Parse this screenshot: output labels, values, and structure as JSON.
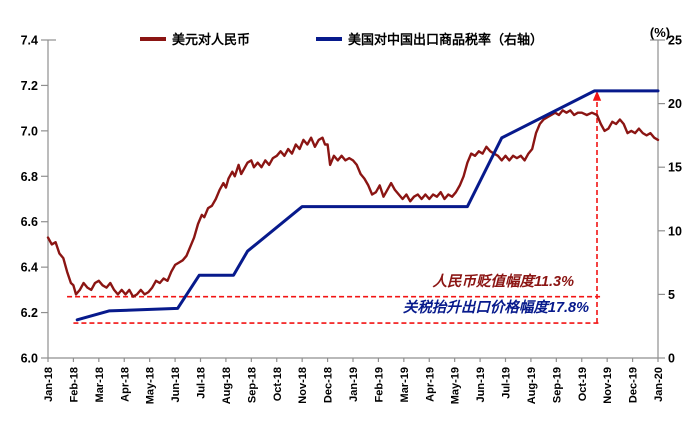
{
  "legend": {
    "series": [
      {
        "label": "美元对人民币",
        "color": "#8b1513"
      },
      {
        "label": "美国对中国出口商品税率（右轴）",
        "color": "#071a8c"
      }
    ]
  },
  "chart_data": {
    "type": "line",
    "title": "",
    "x_axis": {
      "labels": [
        "Jan-18",
        "Feb-18",
        "Mar-18",
        "Apr-18",
        "May-18",
        "Jun-18",
        "Jul-18",
        "Aug-18",
        "Sep-18",
        "Oct-18",
        "Nov-18",
        "Dec-18",
        "Jan-19",
        "Feb-19",
        "Mar-19",
        "Apr-19",
        "May-19",
        "Jun-19",
        "Jul-19",
        "Aug-19",
        "Sep-19",
        "Oct-19",
        "Nov-19",
        "Dec-19",
        "Jan-20"
      ]
    },
    "y_left": {
      "min": 6.0,
      "max": 7.4,
      "tick_labels": [
        "7.4",
        "7.2",
        "7.0",
        "6.8",
        "6.6",
        "6.4",
        "6.2",
        "6.0"
      ]
    },
    "y_right": {
      "min": 0,
      "max": 25,
      "tick_labels": [
        "25",
        "20",
        "15",
        "10",
        "5",
        "0"
      ],
      "unit_label": "(%)"
    },
    "series": [
      {
        "name": "美元对人民币",
        "axis": "left",
        "color": "#8b1513",
        "stroke_width": 2.4,
        "points": [
          [
            0.0,
            6.53
          ],
          [
            0.15,
            6.5
          ],
          [
            0.3,
            6.51
          ],
          [
            0.45,
            6.46
          ],
          [
            0.6,
            6.44
          ],
          [
            0.75,
            6.38
          ],
          [
            0.9,
            6.33
          ],
          [
            1.0,
            6.32
          ],
          [
            1.1,
            6.28
          ],
          [
            1.25,
            6.3
          ],
          [
            1.4,
            6.33
          ],
          [
            1.55,
            6.31
          ],
          [
            1.7,
            6.3
          ],
          [
            1.85,
            6.33
          ],
          [
            2.0,
            6.34
          ],
          [
            2.15,
            6.32
          ],
          [
            2.3,
            6.31
          ],
          [
            2.45,
            6.33
          ],
          [
            2.6,
            6.3
          ],
          [
            2.75,
            6.28
          ],
          [
            2.9,
            6.3
          ],
          [
            3.05,
            6.28
          ],
          [
            3.2,
            6.3
          ],
          [
            3.35,
            6.27
          ],
          [
            3.5,
            6.28
          ],
          [
            3.65,
            6.3
          ],
          [
            3.8,
            6.28
          ],
          [
            3.95,
            6.29
          ],
          [
            4.1,
            6.31
          ],
          [
            4.25,
            6.34
          ],
          [
            4.4,
            6.33
          ],
          [
            4.55,
            6.35
          ],
          [
            4.7,
            6.34
          ],
          [
            4.85,
            6.38
          ],
          [
            5.0,
            6.41
          ],
          [
            5.15,
            6.42
          ],
          [
            5.3,
            6.43
          ],
          [
            5.45,
            6.45
          ],
          [
            5.6,
            6.49
          ],
          [
            5.75,
            6.53
          ],
          [
            5.9,
            6.59
          ],
          [
            6.05,
            6.63
          ],
          [
            6.15,
            6.62
          ],
          [
            6.3,
            6.66
          ],
          [
            6.45,
            6.67
          ],
          [
            6.6,
            6.7
          ],
          [
            6.75,
            6.74
          ],
          [
            6.9,
            6.77
          ],
          [
            7.0,
            6.75
          ],
          [
            7.1,
            6.79
          ],
          [
            7.25,
            6.82
          ],
          [
            7.35,
            6.8
          ],
          [
            7.5,
            6.85
          ],
          [
            7.6,
            6.81
          ],
          [
            7.7,
            6.83
          ],
          [
            7.85,
            6.86
          ],
          [
            8.0,
            6.87
          ],
          [
            8.1,
            6.84
          ],
          [
            8.25,
            6.86
          ],
          [
            8.4,
            6.84
          ],
          [
            8.55,
            6.87
          ],
          [
            8.7,
            6.85
          ],
          [
            8.85,
            6.88
          ],
          [
            9.0,
            6.89
          ],
          [
            9.15,
            6.91
          ],
          [
            9.3,
            6.89
          ],
          [
            9.45,
            6.92
          ],
          [
            9.6,
            6.9
          ],
          [
            9.75,
            6.94
          ],
          [
            9.9,
            6.92
          ],
          [
            10.05,
            6.96
          ],
          [
            10.2,
            6.94
          ],
          [
            10.35,
            6.97
          ],
          [
            10.5,
            6.93
          ],
          [
            10.65,
            6.96
          ],
          [
            10.8,
            6.97
          ],
          [
            10.9,
            6.94
          ],
          [
            11.0,
            6.94
          ],
          [
            11.1,
            6.85
          ],
          [
            11.25,
            6.89
          ],
          [
            11.4,
            6.87
          ],
          [
            11.55,
            6.89
          ],
          [
            11.7,
            6.87
          ],
          [
            11.85,
            6.88
          ],
          [
            12.0,
            6.87
          ],
          [
            12.15,
            6.85
          ],
          [
            12.3,
            6.81
          ],
          [
            12.45,
            6.79
          ],
          [
            12.6,
            6.76
          ],
          [
            12.75,
            6.72
          ],
          [
            12.9,
            6.73
          ],
          [
            13.05,
            6.76
          ],
          [
            13.2,
            6.71
          ],
          [
            13.35,
            6.74
          ],
          [
            13.5,
            6.77
          ],
          [
            13.65,
            6.74
          ],
          [
            13.8,
            6.72
          ],
          [
            13.95,
            6.7
          ],
          [
            14.1,
            6.72
          ],
          [
            14.25,
            6.69
          ],
          [
            14.4,
            6.71
          ],
          [
            14.55,
            6.72
          ],
          [
            14.7,
            6.7
          ],
          [
            14.85,
            6.72
          ],
          [
            15.0,
            6.7
          ],
          [
            15.15,
            6.72
          ],
          [
            15.3,
            6.71
          ],
          [
            15.45,
            6.73
          ],
          [
            15.6,
            6.7
          ],
          [
            15.75,
            6.72
          ],
          [
            15.9,
            6.71
          ],
          [
            16.05,
            6.73
          ],
          [
            16.2,
            6.76
          ],
          [
            16.35,
            6.8
          ],
          [
            16.5,
            6.86
          ],
          [
            16.65,
            6.9
          ],
          [
            16.8,
            6.89
          ],
          [
            16.95,
            6.91
          ],
          [
            17.1,
            6.9
          ],
          [
            17.25,
            6.93
          ],
          [
            17.4,
            6.91
          ],
          [
            17.55,
            6.9
          ],
          [
            17.7,
            6.89
          ],
          [
            17.85,
            6.87
          ],
          [
            18.0,
            6.89
          ],
          [
            18.15,
            6.87
          ],
          [
            18.3,
            6.89
          ],
          [
            18.45,
            6.88
          ],
          [
            18.6,
            6.89
          ],
          [
            18.75,
            6.87
          ],
          [
            18.9,
            6.9
          ],
          [
            19.05,
            6.92
          ],
          [
            19.2,
            6.99
          ],
          [
            19.35,
            7.03
          ],
          [
            19.5,
            7.05
          ],
          [
            19.65,
            7.06
          ],
          [
            19.8,
            7.07
          ],
          [
            19.95,
            7.08
          ],
          [
            20.1,
            7.07
          ],
          [
            20.25,
            7.09
          ],
          [
            20.4,
            7.08
          ],
          [
            20.55,
            7.09
          ],
          [
            20.7,
            7.07
          ],
          [
            20.85,
            7.08
          ],
          [
            21.0,
            7.08
          ],
          [
            21.2,
            7.07
          ],
          [
            21.4,
            7.08
          ],
          [
            21.6,
            7.07
          ],
          [
            21.75,
            7.03
          ],
          [
            21.9,
            7.0
          ],
          [
            22.05,
            7.01
          ],
          [
            22.2,
            7.04
          ],
          [
            22.35,
            7.03
          ],
          [
            22.5,
            7.05
          ],
          [
            22.65,
            7.03
          ],
          [
            22.8,
            6.99
          ],
          [
            22.95,
            7.0
          ],
          [
            23.1,
            6.99
          ],
          [
            23.25,
            7.01
          ],
          [
            23.4,
            6.99
          ],
          [
            23.55,
            6.98
          ],
          [
            23.7,
            6.99
          ],
          [
            23.85,
            6.97
          ],
          [
            24.0,
            6.96
          ]
        ]
      },
      {
        "name": "美国对中国出口商品税率（右轴）",
        "axis": "right",
        "color": "#071a8c",
        "stroke_width": 3,
        "points": [
          [
            1.15,
            3.0
          ],
          [
            2.4,
            3.7
          ],
          [
            5.1,
            3.9
          ],
          [
            5.95,
            6.5
          ],
          [
            7.3,
            6.5
          ],
          [
            7.85,
            8.4
          ],
          [
            10.0,
            11.9
          ],
          [
            16.5,
            11.9
          ],
          [
            17.85,
            17.3
          ],
          [
            21.5,
            21.0
          ],
          [
            24.0,
            21.0
          ]
        ]
      }
    ],
    "annotations": {
      "depreciation_label": "人民币贬值幅度11.3%",
      "tariff_label": "关税抬升出口价格幅度17.8%",
      "depreciation_color": "#8b1513",
      "tariff_color": "#071a8c",
      "dash_color": "#f21414",
      "hline_rmb": {
        "axis": "left",
        "value": 6.27,
        "from_month": 0.75,
        "to_month": 21.75
      },
      "hline_tariff": {
        "axis": "right",
        "value": 2.75,
        "from_month": 1.0,
        "to_month": 21.75
      },
      "arrow": {
        "month": 21.6,
        "from_value_right": 2.75,
        "to_value_right": 20.3
      }
    },
    "layout": {
      "grid": false,
      "legend_position": "top-center"
    }
  }
}
